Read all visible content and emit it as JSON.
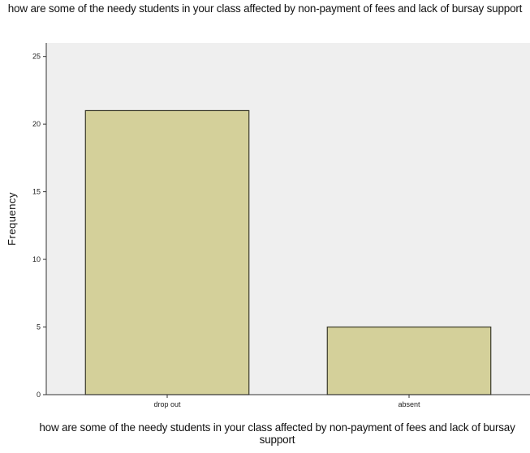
{
  "chart_data": {
    "type": "bar",
    "title": "how are some of the needy students in your class affected by non-payment of fees and lack of bursay support",
    "xlabel": "how are some of the needy students in your class affected by non-payment of fees and lack of bursay support",
    "ylabel": "Frequency",
    "categories": [
      "drop out",
      "absent"
    ],
    "values": [
      21,
      5
    ],
    "ylim": [
      0,
      26
    ],
    "yticks": [
      0,
      5,
      10,
      15,
      20,
      25
    ],
    "grid": false,
    "colors": {
      "bar": "#d4d09a",
      "bar_edge": "#3a3a2a",
      "plot_bg": "#efefef"
    }
  }
}
